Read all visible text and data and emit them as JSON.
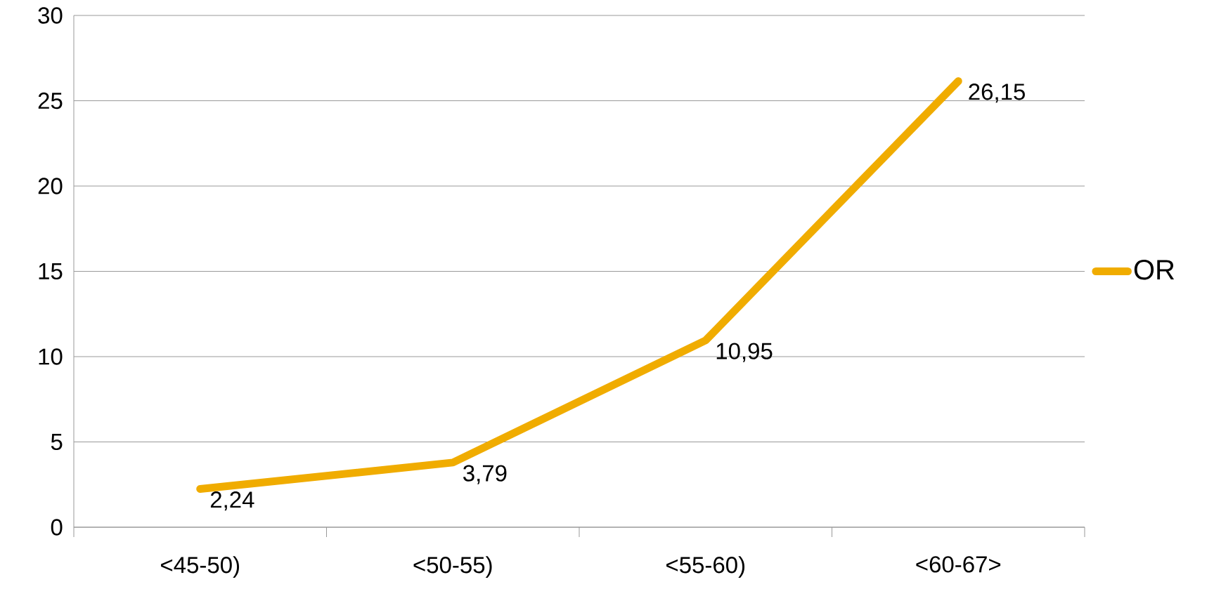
{
  "chart_data": {
    "type": "line",
    "categories": [
      "<45-50)",
      "<50-55)",
      "<55-60)",
      "<60-67>"
    ],
    "series": [
      {
        "name": "OR",
        "color": "#f0ac00",
        "values": [
          2.24,
          3.79,
          10.95,
          26.15
        ],
        "value_labels": [
          "2,24",
          "3,79",
          "10,95",
          "26,15"
        ]
      }
    ],
    "ylim": [
      0,
      30
    ],
    "yticks": [
      0,
      5,
      10,
      15,
      20,
      25,
      30
    ],
    "grid": "y",
    "legend": "right"
  }
}
